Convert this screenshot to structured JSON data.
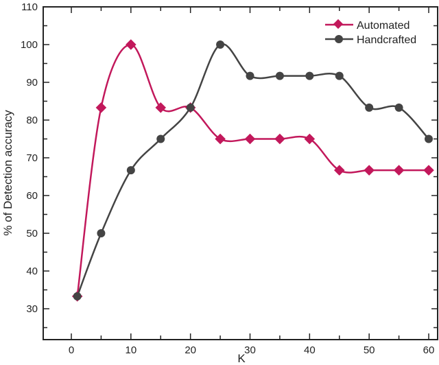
{
  "chart_data": {
    "type": "line",
    "title": "",
    "xlabel": "K",
    "ylabel": "% of Detection accuracy",
    "xlim": [
      -5,
      65
    ],
    "ylim": [
      20,
      110
    ],
    "xticks": [
      0,
      10,
      20,
      30,
      40,
      50,
      60
    ],
    "yticks": [
      30,
      40,
      50,
      60,
      70,
      80,
      90,
      100,
      110
    ],
    "grid": false,
    "legend_position": "top-right",
    "x": [
      1,
      5,
      10,
      15,
      20,
      25,
      30,
      35,
      40,
      45,
      50,
      55,
      60
    ],
    "series": [
      {
        "name": "Automated",
        "color": "#c2185b",
        "marker": "diamond",
        "values": [
          33.3,
          83.3,
          100,
          83.3,
          83.3,
          75,
          75,
          75,
          75,
          66.7,
          66.7,
          66.7,
          66.7
        ]
      },
      {
        "name": "Handcrafted",
        "color": "#444444",
        "marker": "circle",
        "values": [
          33.3,
          50,
          66.7,
          75,
          83.3,
          100,
          91.7,
          91.7,
          91.7,
          91.7,
          83.3,
          83.3,
          75
        ]
      }
    ]
  },
  "legend": {
    "automated": "Automated",
    "handcrafted": "Handcrafted"
  },
  "axes": {
    "xlabel": "K",
    "ylabel": "% of Detection accuracy"
  }
}
